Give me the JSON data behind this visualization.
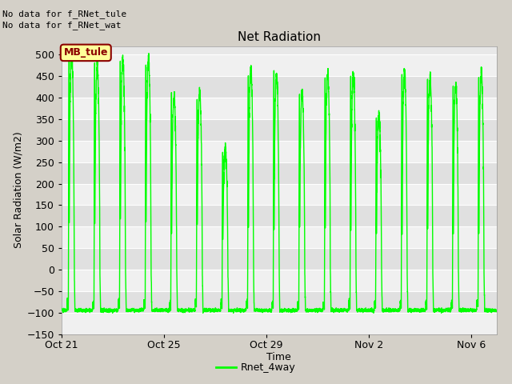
{
  "title": "Net Radiation",
  "xlabel": "Time",
  "ylabel": "Solar Radiation (W/m2)",
  "ylim": [
    -150,
    520
  ],
  "yticks": [
    -150,
    -100,
    -50,
    0,
    50,
    100,
    150,
    200,
    250,
    300,
    350,
    400,
    450,
    500
  ],
  "line_color": "#00FF00",
  "line_width": 1.0,
  "fig_bg_color": "#D4D0C8",
  "plot_bg_color": "#E8E8E8",
  "annotations_top_left": [
    "No data for f_RNet_tule",
    "No data for f_RNet_wat"
  ],
  "legend_label": "Rnet_4way",
  "legend_line_color": "#00FF00",
  "mb_tule_label": "MB_tule",
  "mb_tule_bg": "#FFFF99",
  "mb_tule_border": "#8B0000",
  "mb_tule_text_color": "#8B0000",
  "x_tick_labels": [
    "Oct 21",
    "Oct 25",
    "Oct 29",
    "Nov 2",
    "Nov 6"
  ],
  "x_tick_positions": [
    0,
    4,
    8,
    12,
    16
  ],
  "n_days": 17,
  "font_family": "DejaVu Sans",
  "title_fontsize": 11,
  "axis_fontsize": 9,
  "tick_fontsize": 9,
  "annot_fontsize": 8
}
